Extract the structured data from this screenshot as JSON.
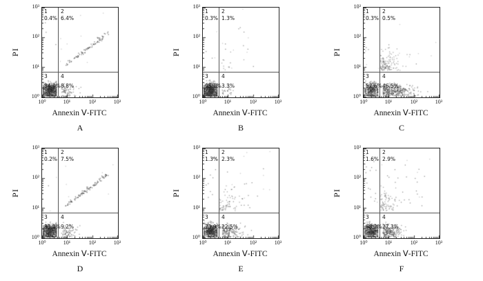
{
  "figure": {
    "ylabel": "PI",
    "xlabel": "Annexin Ⅴ-FITC",
    "yticks": [
      "10³",
      "10²",
      "10¹",
      "10⁰"
    ],
    "xticks": [
      "10⁰",
      "10¹",
      "10²",
      "10³"
    ]
  },
  "chart_data": {
    "type": "scatter",
    "subtype": "flow_cytometry_annexinV_PI_quadrant",
    "xlabel": "Annexin Ⅴ-FITC",
    "ylabel": "PI",
    "x_scale": "log10",
    "y_scale": "log10",
    "x_range": [
      1,
      1000
    ],
    "y_range": [
      1,
      1000
    ],
    "grid": false,
    "legend": "none",
    "gates": {
      "x_frac": 0.21,
      "y_frac": 0.715
    },
    "panels": [
      {
        "label": "A",
        "pattern": "diagonal",
        "q1_num": "1",
        "q1_pct": "0.4%",
        "q2_num": "2",
        "q2_pct": "6.4%",
        "q3_num": "3",
        "q3_pct": "84.4%",
        "q4_num": "4",
        "q4_pct": "8.8%",
        "values": {
          "q1": 0.4,
          "q2": 6.4,
          "q3": 84.4,
          "q4": 8.8
        }
      },
      {
        "label": "B",
        "pattern": "cloud",
        "q1_num": "1",
        "q1_pct": "0.3%",
        "q2_num": "2",
        "q2_pct": "1.3%",
        "q3_num": "3",
        "q3_pct": "95.1%",
        "q4_num": "4",
        "q4_pct": "3.3%",
        "values": {
          "q1": 0.3,
          "q2": 1.3,
          "q3": 95.1,
          "q4": 3.3
        }
      },
      {
        "label": "C",
        "pattern": "cloud",
        "q1_num": "1",
        "q1_pct": "0.3%",
        "q2_num": "2",
        "q2_pct": "0.5%",
        "q3_num": "3",
        "q3_pct": "52.6%",
        "q4_num": "4",
        "q4_pct": "46.5%",
        "values": {
          "q1": 0.3,
          "q2": 0.5,
          "q3": 52.6,
          "q4": 46.5
        }
      },
      {
        "label": "D",
        "pattern": "diagonal",
        "q1_num": "1",
        "q1_pct": "0.2%",
        "q2_num": "2",
        "q2_pct": "7.5%",
        "q3_num": "3",
        "q3_pct": "83.1%",
        "q4_num": "4",
        "q4_pct": "9.2%",
        "values": {
          "q1": 0.2,
          "q2": 7.5,
          "q3": 83.1,
          "q4": 9.2
        }
      },
      {
        "label": "E",
        "pattern": "cloud",
        "q1_num": "1",
        "q1_pct": "1.3%",
        "q2_num": "2",
        "q2_pct": "2.3%",
        "q3_num": "3",
        "q3_pct": "73.9%",
        "q4_num": "4",
        "q4_pct": "22.5%",
        "values": {
          "q1": 1.3,
          "q2": 2.3,
          "q3": 73.9,
          "q4": 22.5
        }
      },
      {
        "label": "F",
        "pattern": "cloud",
        "q1_num": "1",
        "q1_pct": "1.6%",
        "q2_num": "2",
        "q2_pct": "2.9%",
        "q3_num": "3",
        "q3_pct": "68.2%",
        "q4_num": "4",
        "q4_pct": "27.3%",
        "values": {
          "q1": 1.6,
          "q2": 2.9,
          "q3": 68.2,
          "q4": 27.3
        }
      }
    ]
  }
}
